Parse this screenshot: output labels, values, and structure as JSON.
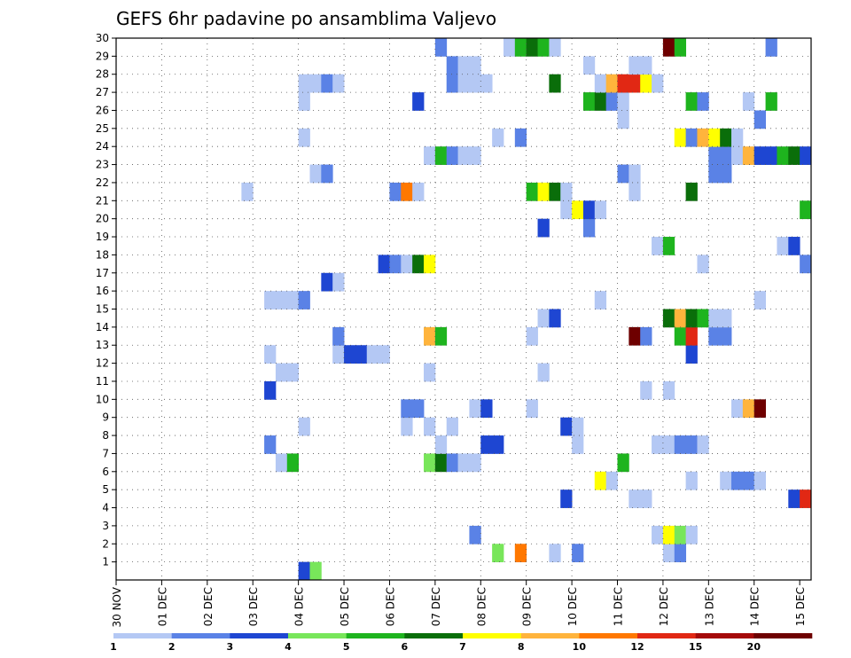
{
  "chart_data": {
    "type": "heatmap",
    "title": "GEFS 6hr padavine po ansamblima Valjevo",
    "xlabel": "",
    "ylabel": "",
    "x_start_label": "30 NOV",
    "x_steps_per_day": 4,
    "x_total_steps": 61,
    "x_tick_labels": [
      "30 NOV",
      "01 DEC",
      "02 DEC",
      "03 DEC",
      "04 DEC",
      "05 DEC",
      "06 DEC",
      "07 DEC",
      "08 DEC",
      "09 DEC",
      "10 DEC",
      "11 DEC",
      "12 DEC",
      "13 DEC",
      "14 DEC",
      "15 DEC"
    ],
    "y_tick_labels": [
      1,
      2,
      3,
      4,
      5,
      6,
      7,
      8,
      9,
      10,
      11,
      12,
      13,
      14,
      15,
      16,
      17,
      18,
      19,
      20,
      21,
      22,
      23,
      24,
      25,
      26,
      27,
      28,
      29,
      30
    ],
    "ylim": [
      0,
      30
    ],
    "grid": true,
    "colorbar": {
      "placement": "bottom",
      "labels": [
        "1",
        "2",
        "3",
        "4",
        "5",
        "6",
        "7",
        "8",
        "10",
        "12",
        "15",
        "20"
      ],
      "colors": [
        "#b4c8f4",
        "#5a82e6",
        "#1e46d2",
        "#78e65a",
        "#1eb41e",
        "#0a6e0a",
        "#ffff00",
        "#ffb43c",
        "#ff7800",
        "#e12814",
        "#a50a0a",
        "#6e0000"
      ]
    },
    "cells_note": "each cell: [time_step_index_from_30NOV_00UTC (6h steps), member, colour_class_index]",
    "cells": [
      [
        16,
        0,
        2
      ],
      [
        17,
        0,
        3
      ],
      [
        33,
        1,
        3
      ],
      [
        35,
        1,
        8
      ],
      [
        38,
        1,
        0
      ],
      [
        40,
        1,
        1
      ],
      [
        48,
        1,
        0
      ],
      [
        49,
        1,
        1
      ],
      [
        31,
        2,
        1
      ],
      [
        47,
        2,
        0
      ],
      [
        48,
        2,
        6
      ],
      [
        49,
        2,
        3
      ],
      [
        50,
        2,
        0
      ],
      [
        59,
        4,
        2
      ],
      [
        60,
        4,
        9
      ],
      [
        39,
        4,
        2
      ],
      [
        45,
        4,
        0
      ],
      [
        46,
        4,
        0
      ],
      [
        42,
        5,
        6
      ],
      [
        43,
        5,
        0
      ],
      [
        50,
        5,
        0
      ],
      [
        53,
        5,
        0
      ],
      [
        54,
        5,
        1
      ],
      [
        55,
        5,
        1
      ],
      [
        56,
        5,
        0
      ],
      [
        14,
        6,
        0
      ],
      [
        15,
        6,
        4
      ],
      [
        27,
        6,
        3
      ],
      [
        28,
        6,
        5
      ],
      [
        29,
        6,
        1
      ],
      [
        30,
        6,
        0
      ],
      [
        31,
        6,
        0
      ],
      [
        44,
        6,
        4
      ],
      [
        13,
        7,
        1
      ],
      [
        28,
        7,
        0
      ],
      [
        32,
        7,
        2
      ],
      [
        33,
        7,
        2
      ],
      [
        40,
        7,
        0
      ],
      [
        47,
        7,
        0
      ],
      [
        48,
        7,
        0
      ],
      [
        49,
        7,
        1
      ],
      [
        50,
        7,
        1
      ],
      [
        51,
        7,
        0
      ],
      [
        16,
        8,
        0
      ],
      [
        25,
        8,
        0
      ],
      [
        27,
        8,
        0
      ],
      [
        29,
        8,
        0
      ],
      [
        39,
        8,
        2
      ],
      [
        40,
        8,
        0
      ],
      [
        25,
        9,
        1
      ],
      [
        26,
        9,
        1
      ],
      [
        31,
        9,
        0
      ],
      [
        32,
        9,
        2
      ],
      [
        36,
        9,
        0
      ],
      [
        54,
        9,
        0
      ],
      [
        55,
        9,
        7
      ],
      [
        56,
        9,
        11
      ],
      [
        13,
        10,
        2
      ],
      [
        46,
        10,
        0
      ],
      [
        48,
        10,
        0
      ],
      [
        14,
        11,
        0
      ],
      [
        15,
        11,
        0
      ],
      [
        27,
        11,
        0
      ],
      [
        37,
        11,
        0
      ],
      [
        13,
        12,
        0
      ],
      [
        19,
        12,
        0
      ],
      [
        20,
        12,
        2
      ],
      [
        21,
        12,
        2
      ],
      [
        22,
        12,
        0
      ],
      [
        23,
        12,
        0
      ],
      [
        50,
        12,
        2
      ],
      [
        19,
        13,
        1
      ],
      [
        27,
        13,
        7
      ],
      [
        28,
        13,
        4
      ],
      [
        36,
        13,
        0
      ],
      [
        45,
        13,
        11
      ],
      [
        46,
        13,
        1
      ],
      [
        49,
        13,
        4
      ],
      [
        50,
        13,
        9
      ],
      [
        52,
        13,
        1
      ],
      [
        53,
        13,
        1
      ],
      [
        37,
        14,
        0
      ],
      [
        38,
        14,
        2
      ],
      [
        48,
        14,
        5
      ],
      [
        49,
        14,
        7
      ],
      [
        50,
        14,
        5
      ],
      [
        51,
        14,
        4
      ],
      [
        52,
        14,
        0
      ],
      [
        53,
        14,
        0
      ],
      [
        13,
        15,
        0
      ],
      [
        14,
        15,
        0
      ],
      [
        15,
        15,
        0
      ],
      [
        16,
        15,
        1
      ],
      [
        42,
        15,
        0
      ],
      [
        56,
        15,
        0
      ],
      [
        18,
        16,
        2
      ],
      [
        19,
        16,
        0
      ],
      [
        23,
        17,
        2
      ],
      [
        24,
        17,
        1
      ],
      [
        25,
        17,
        0
      ],
      [
        26,
        17,
        5
      ],
      [
        27,
        17,
        6
      ],
      [
        51,
        17,
        0
      ],
      [
        60,
        17,
        1
      ],
      [
        47,
        18,
        0
      ],
      [
        48,
        18,
        4
      ],
      [
        58,
        18,
        0
      ],
      [
        59,
        18,
        2
      ],
      [
        37,
        19,
        2
      ],
      [
        41,
        19,
        1
      ],
      [
        39,
        20,
        0
      ],
      [
        40,
        20,
        6
      ],
      [
        41,
        20,
        2
      ],
      [
        42,
        20,
        0
      ],
      [
        60,
        20,
        4
      ],
      [
        11,
        21,
        0
      ],
      [
        24,
        21,
        1
      ],
      [
        25,
        21,
        8
      ],
      [
        26,
        21,
        0
      ],
      [
        36,
        21,
        4
      ],
      [
        37,
        21,
        6
      ],
      [
        38,
        21,
        5
      ],
      [
        39,
        21,
        0
      ],
      [
        45,
        21,
        0
      ],
      [
        50,
        21,
        5
      ],
      [
        17,
        22,
        0
      ],
      [
        18,
        22,
        1
      ],
      [
        44,
        22,
        1
      ],
      [
        45,
        22,
        0
      ],
      [
        52,
        22,
        1
      ],
      [
        53,
        22,
        1
      ],
      [
        27,
        23,
        0
      ],
      [
        28,
        23,
        4
      ],
      [
        29,
        23,
        1
      ],
      [
        30,
        23,
        0
      ],
      [
        31,
        23,
        0
      ],
      [
        52,
        23,
        1
      ],
      [
        53,
        23,
        1
      ],
      [
        54,
        23,
        0
      ],
      [
        55,
        23,
        7
      ],
      [
        56,
        23,
        2
      ],
      [
        57,
        23,
        2
      ],
      [
        58,
        23,
        4
      ],
      [
        59,
        23,
        5
      ],
      [
        60,
        23,
        2
      ],
      [
        16,
        24,
        0
      ],
      [
        33,
        24,
        0
      ],
      [
        35,
        24,
        1
      ],
      [
        49,
        24,
        6
      ],
      [
        50,
        24,
        1
      ],
      [
        51,
        24,
        7
      ],
      [
        52,
        24,
        6
      ],
      [
        53,
        24,
        5
      ],
      [
        54,
        24,
        0
      ],
      [
        44,
        25,
        0
      ],
      [
        56,
        25,
        1
      ],
      [
        16,
        26,
        0
      ],
      [
        26,
        26,
        2
      ],
      [
        41,
        26,
        4
      ],
      [
        42,
        26,
        5
      ],
      [
        43,
        26,
        1
      ],
      [
        44,
        26,
        0
      ],
      [
        50,
        26,
        4
      ],
      [
        51,
        26,
        1
      ],
      [
        55,
        26,
        0
      ],
      [
        57,
        26,
        4
      ],
      [
        16,
        27,
        0
      ],
      [
        17,
        27,
        0
      ],
      [
        18,
        27,
        1
      ],
      [
        19,
        27,
        0
      ],
      [
        29,
        27,
        1
      ],
      [
        30,
        27,
        0
      ],
      [
        31,
        27,
        0
      ],
      [
        32,
        27,
        0
      ],
      [
        38,
        27,
        5
      ],
      [
        42,
        27,
        0
      ],
      [
        43,
        27,
        7
      ],
      [
        44,
        27,
        9
      ],
      [
        45,
        27,
        9
      ],
      [
        46,
        27,
        6
      ],
      [
        47,
        27,
        0
      ],
      [
        29,
        28,
        1
      ],
      [
        30,
        28,
        0
      ],
      [
        31,
        28,
        0
      ],
      [
        41,
        28,
        0
      ],
      [
        45,
        28,
        0
      ],
      [
        46,
        28,
        0
      ],
      [
        28,
        29,
        1
      ],
      [
        34,
        29,
        0
      ],
      [
        35,
        29,
        4
      ],
      [
        36,
        29,
        5
      ],
      [
        37,
        29,
        4
      ],
      [
        38,
        29,
        0
      ],
      [
        48,
        29,
        11
      ],
      [
        49,
        29,
        4
      ],
      [
        57,
        29,
        1
      ]
    ]
  }
}
